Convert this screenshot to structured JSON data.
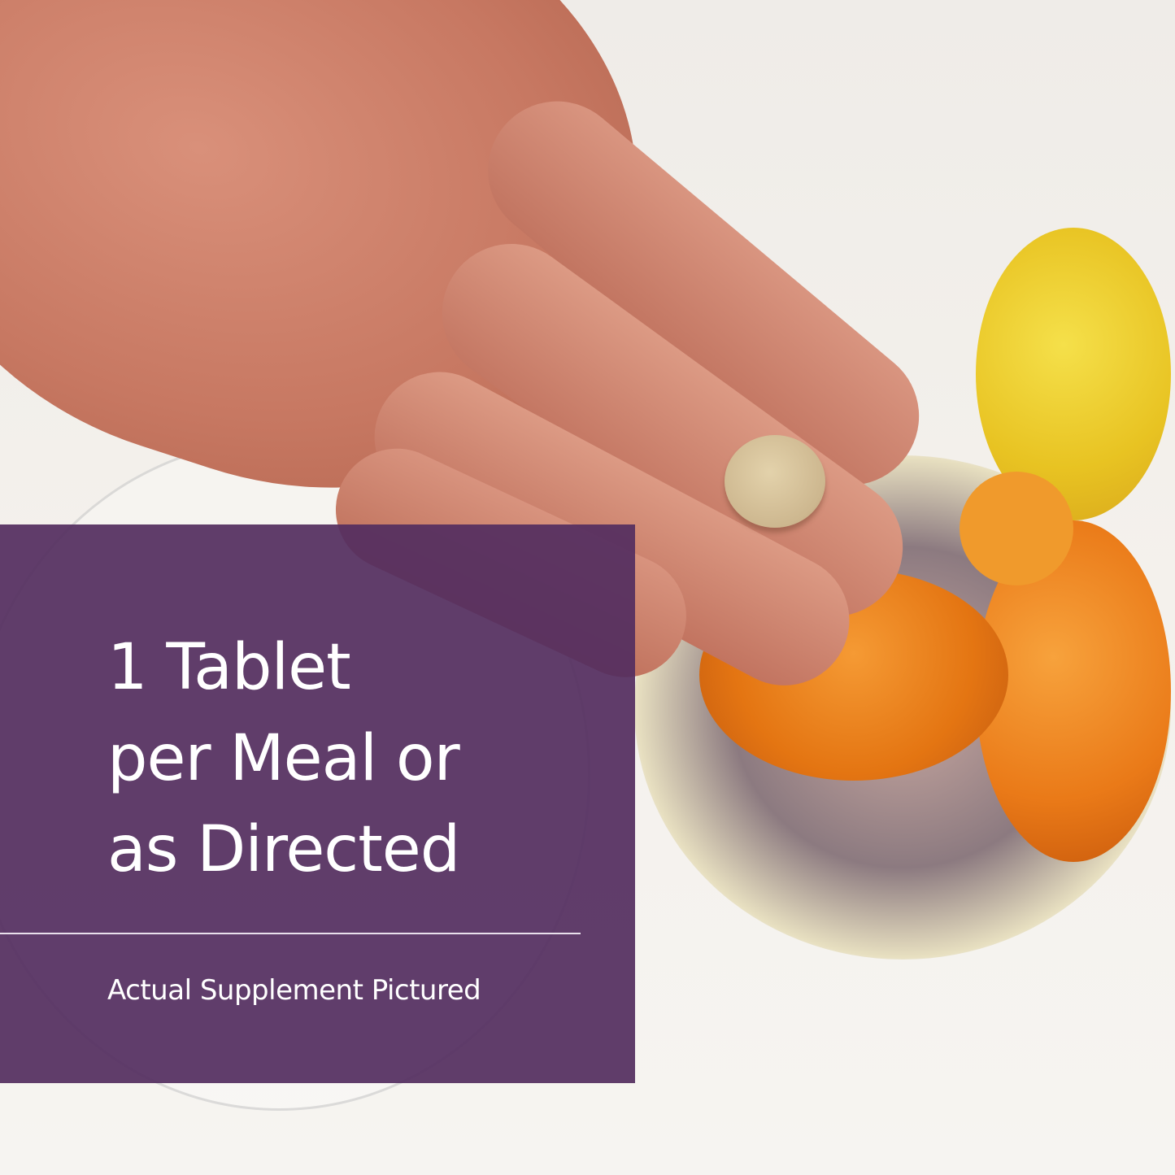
{
  "overlay": {
    "headline_lines": [
      "1 Tablet",
      "per Meal or",
      "as Directed"
    ],
    "caption": "Actual Supplement Pictured",
    "color": "#542e60"
  },
  "photo": {
    "subject": [
      "hand",
      "tablet",
      "fruit-bowl",
      "oranges",
      "lemon",
      "glass-bowl"
    ]
  }
}
